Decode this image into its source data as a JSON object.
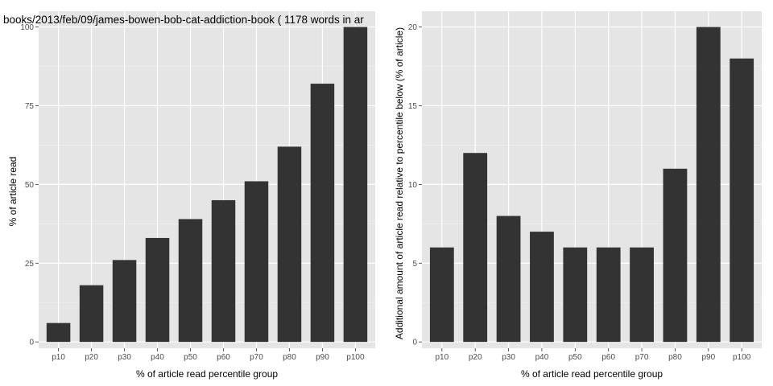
{
  "colors": {
    "panel_background": "#e5e5e5",
    "grid_major": "#ffffff",
    "grid_minor": "#f2f2f2",
    "bar_fill": "#333333",
    "tick_text": "#4d4d4d"
  },
  "chart_data": [
    {
      "type": "bar",
      "title": "books/2013/feb/09/james-bowen-bob-cat-addiction-book ( 1178 words in ar",
      "xlabel": "% of article read percentile group",
      "ylabel": "% of article read",
      "categories": [
        "p10",
        "p20",
        "p30",
        "p40",
        "p50",
        "p60",
        "p70",
        "p80",
        "p90",
        "p100"
      ],
      "values": [
        6,
        18,
        26,
        33,
        39,
        45,
        51,
        62,
        82,
        100
      ],
      "ylim": [
        -2,
        105
      ],
      "yticks": [
        0,
        25,
        50,
        75,
        100
      ],
      "ytick_labels": [
        "0",
        "25",
        "50",
        "75",
        "100"
      ],
      "grid": true
    },
    {
      "type": "bar",
      "title": "",
      "xlabel": "% of article read percentile group",
      "ylabel": "Additional amount of article read relative to percentile below (% of article)",
      "categories": [
        "p10",
        "p20",
        "p30",
        "p40",
        "p50",
        "p60",
        "p70",
        "p80",
        "p90",
        "p100"
      ],
      "values": [
        6,
        12,
        8,
        7,
        6,
        6,
        6,
        11,
        20,
        18
      ],
      "ylim": [
        -0.4,
        21
      ],
      "yticks": [
        0,
        5,
        10,
        15,
        20
      ],
      "ytick_labels": [
        "0",
        "5",
        "10",
        "15",
        "20"
      ],
      "grid": true
    }
  ]
}
